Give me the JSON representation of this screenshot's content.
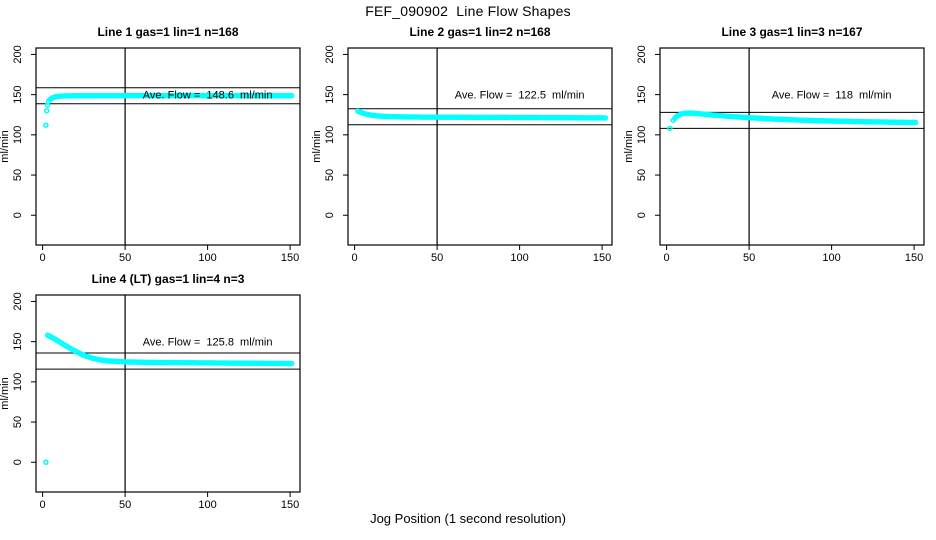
{
  "figure": {
    "title": "FEF_090902  Line Flow Shapes",
    "xlabel": "Jog Position (1 second resolution)",
    "ylabel": "ml/min",
    "accent_color": "#00ffff",
    "axis_color": "#000000",
    "background_color": "#ffffff"
  },
  "chart_data": [
    {
      "type": "scatter",
      "title": "Line 1 gas=1 lin=1 n=168",
      "n": 168,
      "ave_flow": 148.6,
      "annotation": "Ave. Flow =  148.6  ml/min",
      "annotation_pos": {
        "x": 100,
        "y": 150
      },
      "upper_line": 158.6,
      "lower_line": 138.6,
      "vline_x": 50,
      "xticks": [
        0,
        50,
        100,
        150
      ],
      "yticks": [
        0,
        50,
        100,
        150,
        200
      ],
      "xlim": [
        -4,
        156
      ],
      "ylim": [
        -37,
        208
      ],
      "ylabel": "ml/min",
      "segments": [
        [
          [
            2,
            112
          ],
          [
            2.5,
            130
          ],
          [
            3,
            137
          ],
          [
            3.5,
            141.5
          ],
          [
            4.5,
            144
          ],
          [
            6,
            146
          ],
          [
            8,
            147.5
          ],
          [
            11,
            148.2
          ],
          [
            15,
            148.5
          ],
          [
            25,
            148.6
          ],
          [
            50,
            148.7
          ],
          [
            80,
            148.7
          ],
          [
            110,
            148.7
          ],
          [
            130,
            148.6
          ],
          [
            151,
            148.6
          ]
        ]
      ]
    },
    {
      "type": "scatter",
      "title": "Line 2 gas=1 lin=2 n=168",
      "n": 168,
      "ave_flow": 122.5,
      "annotation": "Ave. Flow =  122.5  ml/min",
      "annotation_pos": {
        "x": 100,
        "y": 150
      },
      "upper_line": 132.5,
      "lower_line": 112.5,
      "vline_x": 50,
      "xticks": [
        0,
        50,
        100,
        150
      ],
      "yticks": [
        0,
        50,
        100,
        150,
        200
      ],
      "xlim": [
        -4,
        156
      ],
      "ylim": [
        -37,
        208
      ],
      "ylabel": "ml/min",
      "segments": [
        [
          [
            2,
            129.5
          ],
          [
            3,
            128.5
          ],
          [
            5,
            127
          ],
          [
            7,
            125.8
          ],
          [
            10,
            124.5
          ],
          [
            14,
            123.5
          ],
          [
            20,
            122.8
          ],
          [
            30,
            122.3
          ],
          [
            45,
            122
          ],
          [
            70,
            121.8
          ],
          [
            100,
            121.6
          ],
          [
            130,
            121.3
          ],
          [
            152,
            121
          ]
        ]
      ]
    },
    {
      "type": "scatter",
      "title": "Line 3 gas=1 lin=3 n=167",
      "n": 167,
      "ave_flow": 118,
      "annotation": "Ave. Flow =  118  ml/min",
      "annotation_pos": {
        "x": 100,
        "y": 150
      },
      "upper_line": 128,
      "lower_line": 108,
      "vline_x": 50,
      "xticks": [
        0,
        50,
        100,
        150
      ],
      "yticks": [
        0,
        50,
        100,
        150,
        200
      ],
      "xlim": [
        -4,
        156
      ],
      "ylim": [
        -37,
        208
      ],
      "ylabel": "ml/min",
      "segments": [
        [
          [
            2,
            108
          ]
        ],
        [
          [
            4,
            118
          ],
          [
            6,
            123
          ],
          [
            9,
            126
          ],
          [
            12,
            127
          ],
          [
            16,
            127
          ],
          [
            22,
            125.8
          ],
          [
            30,
            124.3
          ],
          [
            40,
            122.7
          ],
          [
            50,
            121.4
          ],
          [
            65,
            119.7
          ],
          [
            80,
            118.4
          ],
          [
            100,
            117.2
          ],
          [
            120,
            116.3
          ],
          [
            140,
            115.7
          ],
          [
            151,
            115.3
          ]
        ]
      ]
    },
    {
      "type": "scatter",
      "title": "Line 4 (LT) gas=1 lin=4 n=3",
      "n": 3,
      "ave_flow": 125.8,
      "annotation": "Ave. Flow =  125.8  ml/min",
      "annotation_pos": {
        "x": 100,
        "y": 150
      },
      "upper_line": 135.8,
      "lower_line": 115.8,
      "vline_x": 50,
      "xticks": [
        0,
        50,
        100,
        150
      ],
      "yticks": [
        0,
        50,
        100,
        150,
        200
      ],
      "xlim": [
        -4,
        156
      ],
      "ylim": [
        -37,
        208
      ],
      "ylabel": "ml/min",
      "segments": [
        [
          [
            2,
            0
          ]
        ],
        [
          [
            3,
            158
          ],
          [
            5,
            156
          ],
          [
            8,
            152.5
          ],
          [
            12,
            147.5
          ],
          [
            16,
            142.5
          ],
          [
            20,
            138
          ],
          [
            25,
            133
          ],
          [
            30,
            129.5
          ],
          [
            35,
            127.2
          ],
          [
            40,
            126
          ],
          [
            50,
            124.8
          ],
          [
            65,
            124.2
          ],
          [
            85,
            123.8
          ],
          [
            110,
            123.4
          ],
          [
            130,
            123.1
          ],
          [
            151,
            122.8
          ]
        ]
      ]
    }
  ]
}
